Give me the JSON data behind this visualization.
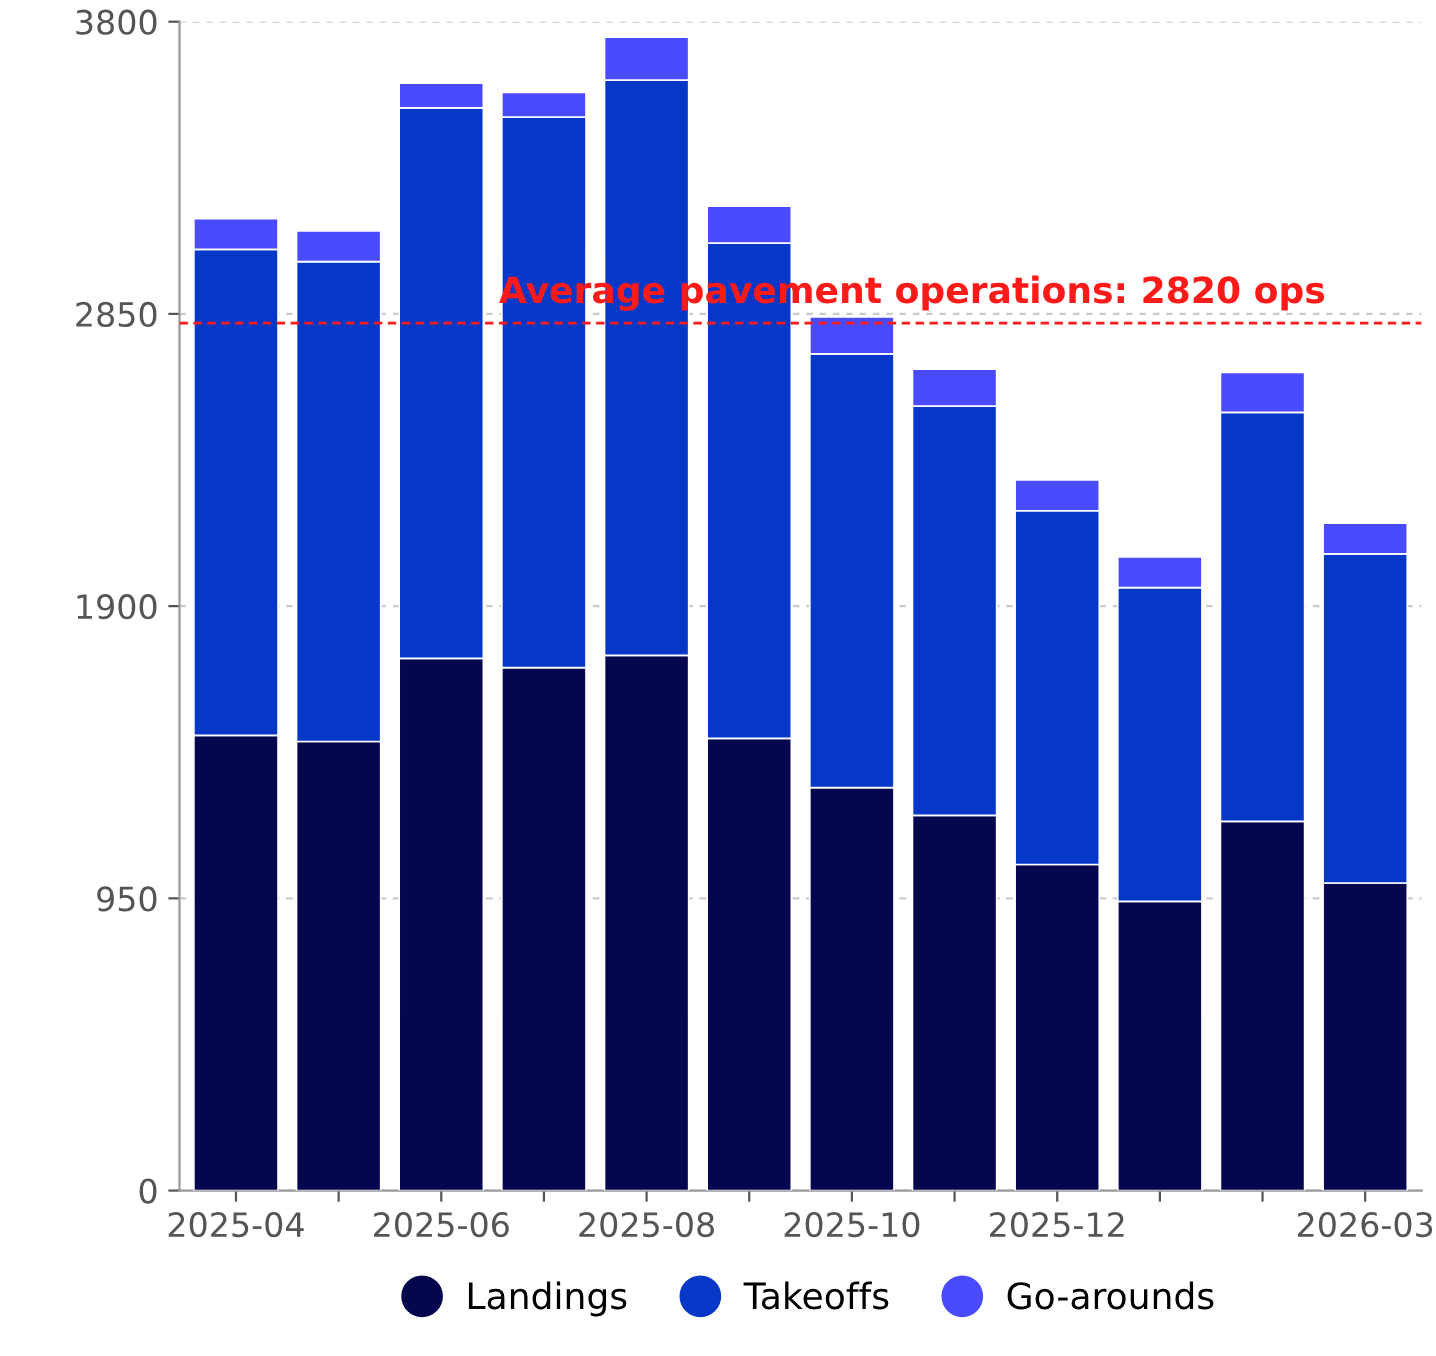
{
  "chart_data": {
    "type": "bar",
    "stacked": true,
    "categories": [
      "2025-04",
      null,
      "2025-06",
      null,
      "2025-08",
      null,
      "2025-10",
      null,
      "2025-12",
      null,
      null,
      "2026-03"
    ],
    "series": [
      {
        "name": "Landings",
        "color": "#06064f",
        "values": [
          1480,
          1460,
          1730,
          1700,
          1740,
          1470,
          1310,
          1220,
          1060,
          940,
          1200,
          1000
        ]
      },
      {
        "name": "Takeoffs",
        "color": "#0638c8",
        "values": [
          1580,
          1560,
          1790,
          1790,
          1870,
          1610,
          1410,
          1330,
          1150,
          1020,
          1330,
          1070
        ]
      },
      {
        "name": "Go-arounds",
        "color": "#4a4aff",
        "values": [
          100,
          100,
          80,
          80,
          140,
          120,
          120,
          120,
          100,
          100,
          130,
          100
        ]
      }
    ],
    "ylim": [
      0,
      3800
    ],
    "yticks": [
      0,
      950,
      1900,
      2850,
      3800
    ],
    "grid": "y",
    "legend": "bottom",
    "ref_lines": [
      {
        "axis": "y",
        "value": 2820,
        "label": "Average pavement operations: 2820 ops",
        "color": "#ff1a1a",
        "line_style": "dashed"
      }
    ]
  }
}
